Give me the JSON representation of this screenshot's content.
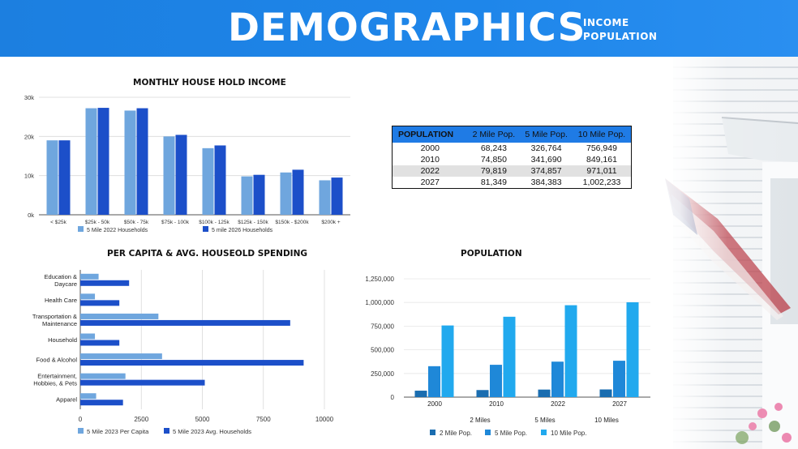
{
  "header": {
    "title": "DEMOGRAPHICS",
    "sub1": "INCOME",
    "sub2": "POPULATION"
  },
  "colors": {
    "header_blue": "#1e86ea",
    "light_bar": "#6fa6de",
    "dark_bar": "#1c4fc9",
    "pop_dark": "#1a6db0",
    "pop_mid": "#1f88d8",
    "pop_light": "#21a9ee"
  },
  "icons": [
    "american-flag-photo"
  ],
  "table": {
    "headers": [
      "POPULATION",
      "2 Mile Pop.",
      "5 Mile Pop.",
      "10 Mile Pop."
    ],
    "rows": [
      [
        "2000",
        "68,243",
        "326,764",
        "756,949"
      ],
      [
        "2010",
        "74,850",
        "341,690",
        "849,161"
      ],
      [
        "2022",
        "79,819",
        "374,857",
        "971,011"
      ],
      [
        "2027",
        "81,349",
        "384,383",
        "1,002,233"
      ]
    ]
  },
  "chart_data": [
    {
      "type": "bar",
      "title": "MONTHLY HOUSE HOLD INCOME",
      "categories": [
        "< $25k",
        "$25k - 50k",
        "$50k - 75k",
        "$75k - 100k",
        "$100k - 125k",
        "$125k - 150k",
        "$150k - $200k",
        "$200k  +"
      ],
      "series": [
        {
          "name": "5 Mile 2022 Households",
          "values": [
            19000,
            27200,
            26600,
            20000,
            17000,
            9800,
            10800,
            8800
          ]
        },
        {
          "name": "5 mile 2026 Households",
          "values": [
            19000,
            27300,
            27200,
            20400,
            17700,
            10200,
            11500,
            9500
          ]
        }
      ],
      "ylim": [
        0,
        30000
      ],
      "yticks": [
        "0k",
        "10k",
        "20k",
        "30k"
      ],
      "legend": "bottom"
    },
    {
      "type": "bar",
      "orientation": "horizontal",
      "title": "PER CAPITA & AVG. HOUSEOLD SPENDING",
      "categories": [
        [
          "Education &",
          "Daycare"
        ],
        [
          "Health Care"
        ],
        [
          "Transportation &",
          "Maintenance"
        ],
        [
          "Household"
        ],
        [
          "Food & Alcohol"
        ],
        [
          "Entertainment,",
          "Hobbies, & Pets"
        ],
        [
          "Apparel"
        ]
      ],
      "series": [
        {
          "name": "5 Mile 2023 Per Capita",
          "values": [
            750,
            600,
            3200,
            600,
            3350,
            1850,
            650
          ]
        },
        {
          "name": "5 Mile 2023 Avg. Households",
          "values": [
            2000,
            1600,
            8600,
            1600,
            9150,
            5100,
            1750
          ]
        }
      ],
      "xlim": [
        0,
        10000
      ],
      "xticks": [
        "0",
        "2500",
        "5000",
        "7500",
        "10000"
      ],
      "legend": "bottom"
    },
    {
      "type": "bar",
      "title": "POPULATION",
      "categories": [
        "2000",
        "2010",
        "2022",
        "2027"
      ],
      "x_sublabels": [
        "2 Miles",
        "5 Miles",
        "10 Miles"
      ],
      "series": [
        {
          "name": "2 Mile Pop.",
          "values": [
            68243,
            74850,
            79819,
            81349
          ]
        },
        {
          "name": "5 Mile Pop.",
          "values": [
            326764,
            341690,
            374857,
            384383
          ]
        },
        {
          "name": "10 Mile Pop.",
          "values": [
            756949,
            849161,
            971011,
            1002233
          ]
        }
      ],
      "ylim": [
        0,
        1250000
      ],
      "yticks": [
        "0",
        "250,000",
        "500,000",
        "750,000",
        "1,000,000",
        "1,250,000"
      ],
      "legend": "bottom"
    }
  ]
}
